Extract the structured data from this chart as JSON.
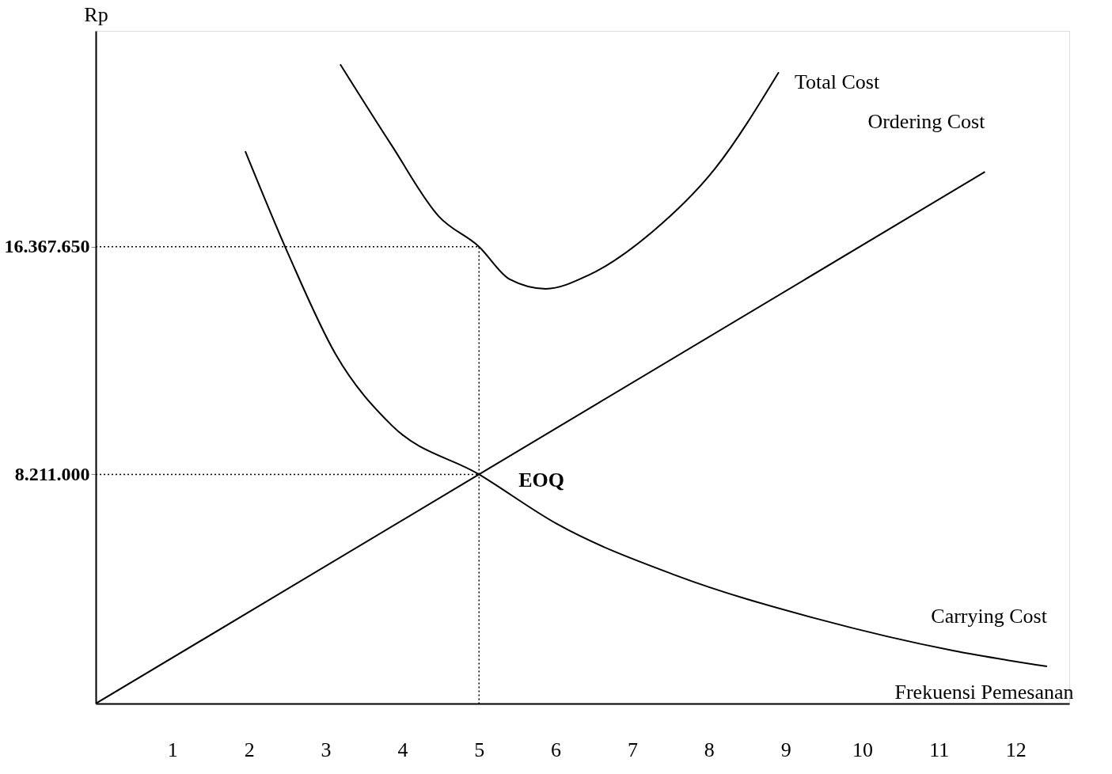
{
  "chart_data": {
    "type": "line",
    "xlabel": "Frekuensi Pemesanan",
    "ylabel": "Rp",
    "xlim": [
      0,
      12.7
    ],
    "xticks": [
      1,
      2,
      3,
      4,
      5,
      6,
      7,
      8,
      9,
      10,
      11,
      12
    ],
    "ylim": [
      0,
      24100000
    ],
    "yticks": [
      {
        "value": 8211000,
        "label": "8.211.000"
      },
      {
        "value": 16367650,
        "label": "16.367.650"
      }
    ],
    "grid": false,
    "marker": "none",
    "series": [
      {
        "name": "Total Cost",
        "color": "#000000",
        "line_style": "solid",
        "x": [
          3.19,
          3.86,
          4.47,
          5,
          5.4,
          5.87,
          6.43,
          7.26,
          8.08,
          8.91
        ],
        "values": [
          22900000,
          20000000,
          17470000,
          16367650,
          15200000,
          14860000,
          15350000,
          16900000,
          19170000,
          22620000
        ]
      },
      {
        "name": "Ordering Cost",
        "color": "#000000",
        "line_style": "solid",
        "x": [
          0,
          5,
          11.6
        ],
        "values": [
          0,
          8211000,
          19050000
        ]
      },
      {
        "name": "Carrying Cost",
        "color": "#000000",
        "line_style": "solid",
        "x": [
          1.95,
          2.52,
          3.13,
          3.86,
          5,
          6.02,
          7.57,
          9.42,
          11.18,
          12.41
        ],
        "values": [
          19790000,
          16050000,
          12510000,
          9970000,
          8211000,
          6430000,
          4590000,
          3030000,
          1900000,
          1330000
        ]
      },
      {
        "color": "#000000",
        "line_style": "dotted",
        "x": [
          0,
          5,
          5
        ],
        "values": [
          16367650,
          16367650,
          0
        ]
      },
      {
        "color": "#000000",
        "line_style": "dotted",
        "x": [
          0,
          5
        ],
        "values": [
          8211000,
          8211000
        ]
      }
    ],
    "annotations": [
      {
        "text": "EOQ",
        "x": 5,
        "y": 8211000
      }
    ]
  }
}
